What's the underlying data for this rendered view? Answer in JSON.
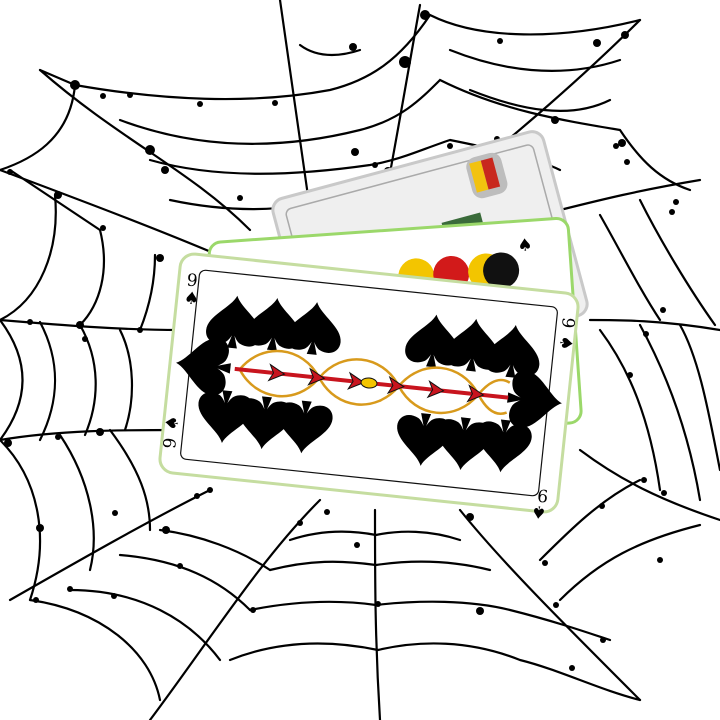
{
  "scene": {
    "background": "#ffffff",
    "web_color": "#000000"
  },
  "cards": {
    "front": {
      "rank": "9",
      "suit": "spades",
      "suit_symbol": "♠",
      "pips": 9,
      "colors": {
        "pip": "#000000",
        "ornament_red": "#c8141e",
        "ornament_gold": "#d89a1c",
        "border": "#111111"
      }
    },
    "middle": {
      "rank": "",
      "suit_symbol": "♠",
      "colors": {
        "yellow": "#f3c500",
        "red": "#d21a1a"
      }
    },
    "back": {
      "rank": "",
      "colors": {
        "yellow": "#f2c20f",
        "red": "#c8281e",
        "gray": "#bdbdbd"
      }
    }
  }
}
